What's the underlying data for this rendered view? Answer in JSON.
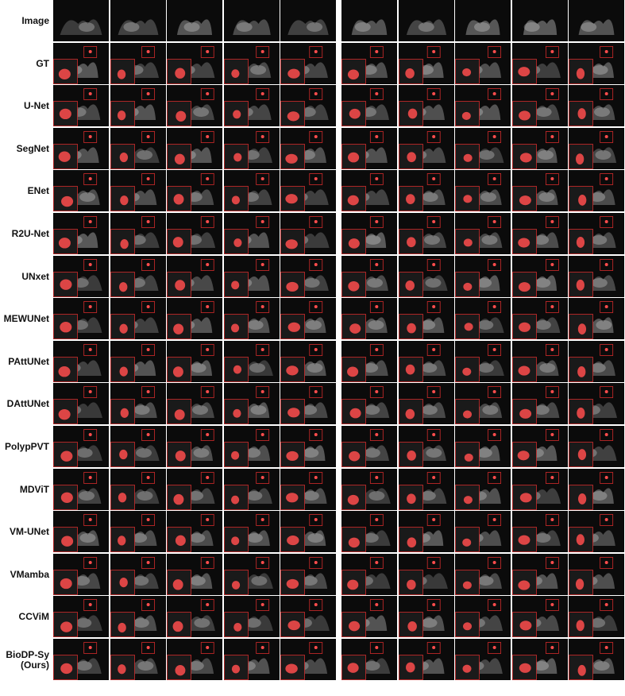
{
  "figure": {
    "rows": [
      {
        "label": "Image",
        "masks": false
      },
      {
        "label": "GT",
        "masks": true
      },
      {
        "label": "U-Net",
        "masks": true
      },
      {
        "label": "SegNet",
        "masks": true
      },
      {
        "label": "ENet",
        "masks": true
      },
      {
        "label": "R2U-Net",
        "masks": true
      },
      {
        "label": "UNxet",
        "masks": true
      },
      {
        "label": "MEWUNet",
        "masks": true
      },
      {
        "label": "PAttUNet",
        "masks": true
      },
      {
        "label": "DAttUNet",
        "masks": true
      },
      {
        "label": "PolypPVT",
        "masks": true
      },
      {
        "label": "MDViT",
        "masks": true
      },
      {
        "label": "VM-UNet",
        "masks": true
      },
      {
        "label": "VMamba",
        "masks": true
      },
      {
        "label": "CCViM",
        "masks": true
      },
      {
        "label": "BioDP-Sy\n(Ours)",
        "masks": true
      }
    ],
    "column_count": 10,
    "colors": {
      "background": "#ffffff",
      "scan": "#0b0b0b",
      "tissue": "#8f8f8f",
      "mask": "#ff4d4d",
      "zoom_box": "#d22b2b"
    }
  }
}
